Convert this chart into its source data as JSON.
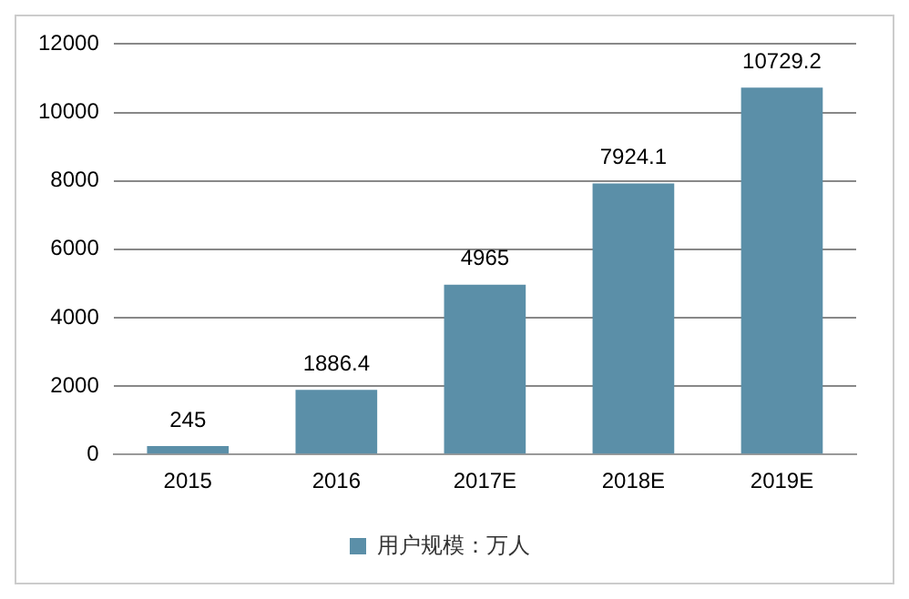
{
  "chart_data": {
    "type": "bar",
    "categories": [
      "2015",
      "2016",
      "2017E",
      "2018E",
      "2019E"
    ],
    "series": [
      {
        "name": "用户规模：万人",
        "color": "#5b8fa8",
        "values": [
          245,
          1886.4,
          4965,
          7924.1,
          10729.2
        ]
      }
    ],
    "ylim": [
      0,
      12000
    ],
    "yticks": [
      0,
      2000,
      4000,
      6000,
      8000,
      10000,
      12000
    ],
    "grid": "y",
    "legend": "bottom",
    "data_labels": true
  }
}
